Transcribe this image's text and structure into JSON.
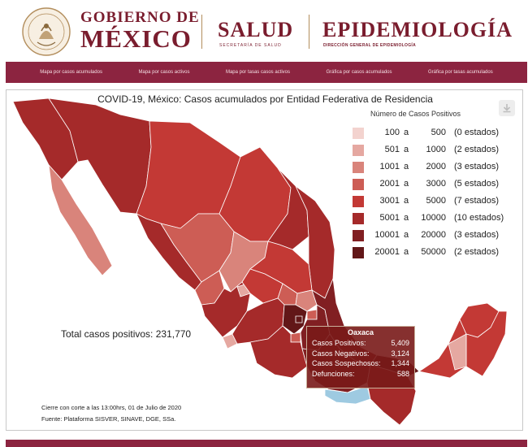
{
  "header": {
    "seal_text": "ESTADOS UNIDOS MEXICANOS",
    "gob_line1": "GOBIERNO DE",
    "gob_line2": "MÉXICO",
    "salud": "SALUD",
    "salud_sub": "SECRETARÍA DE SALUD",
    "epi": "EPIDEMIOLOGÍA",
    "epi_sub": "DIRECCIÓN GENERAL DE EPIDEMIOLOGÍA"
  },
  "nav": [
    "Mapa por casos acumulados",
    "Mapa por casos activos",
    "Mapa por tasas casos activos",
    "Gráfica por casos acumulados",
    "Gráfica por tasas acumulados"
  ],
  "chart": {
    "title": "COVID-19, México: Casos acumulados por Entidad Federativa de Residencia",
    "legend_title": "Número de Casos Positivos",
    "legend": [
      {
        "from": "100",
        "to": "500",
        "count": "(0 estados)",
        "color": "#f3d3cf"
      },
      {
        "from": "501",
        "to": "1000",
        "count": "(2 estados)",
        "color": "#e5a8a1"
      },
      {
        "from": "1001",
        "to": "2000",
        "count": "(3 estados)",
        "color": "#d9847b"
      },
      {
        "from": "2001",
        "to": "3000",
        "count": "(5 estados)",
        "color": "#cd5d55"
      },
      {
        "from": "3001",
        "to": "5000",
        "count": "(7 estados)",
        "color": "#c33935"
      },
      {
        "from": "5001",
        "to": "10000",
        "count": "(10 estados)",
        "color": "#a52a2a"
      },
      {
        "from": "10001",
        "to": "20000",
        "count": "(3 estados)",
        "color": "#811f22"
      },
      {
        "from": "20001",
        "to": "50000",
        "count": "(2 estados)",
        "color": "#621718"
      }
    ],
    "legend_a": "a",
    "total": "Total casos positivos: 231,770",
    "cierre": "Cierre con corte a las 13:00hrs, 01 de Julio de 2020",
    "fuente": "Fuente: Plataforma SISVER, SINAVE, DGE, SSa.",
    "download_icon": "download-icon"
  },
  "tooltip": {
    "title": "Oaxaca",
    "rows": [
      {
        "label": "Casos Positivos:",
        "value": "5,409"
      },
      {
        "label": "Casos Negativos:",
        "value": "3,124"
      },
      {
        "label": "Casos Sospechosos:",
        "value": "1,344"
      },
      {
        "label": "Defunciones:",
        "value": "588"
      }
    ]
  },
  "colors": {
    "brand": "#7a1d2e",
    "nav_bg": "#8c2440",
    "gold": "#b38e5d",
    "hover_state": "#9ecae1"
  }
}
